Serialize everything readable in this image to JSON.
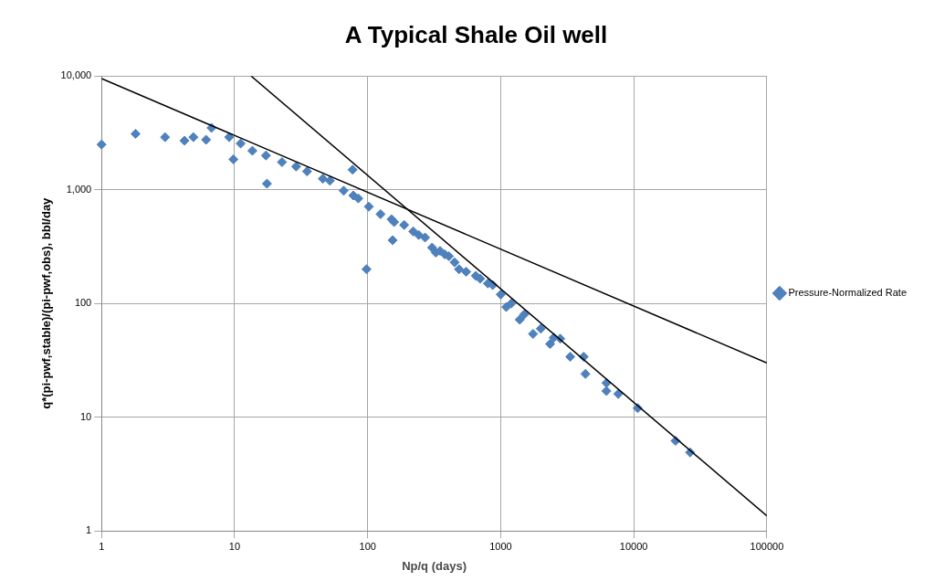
{
  "chart_data": {
    "type": "scatter",
    "title": "A Typical Shale Oil well",
    "xlabel": "Np/q (days)",
    "ylabel": "q*(pi-pwf,stable)/(pi-pwf,obs), bbl/day",
    "log": "xy",
    "grid": true,
    "legend": "right",
    "xlim": [
      1,
      100000
    ],
    "xticks": [
      1,
      10,
      100,
      1000,
      10000,
      100000
    ],
    "ylim": [
      1,
      10000
    ],
    "yticks": [
      1,
      10,
      100,
      {
        "value": 1000,
        "label": "1,000"
      },
      {
        "value": 10000,
        "label": "10,000"
      }
    ],
    "series": [
      {
        "name": "Pressure-Normalized Rate",
        "color": "#4f81bd",
        "marker": "diamond",
        "x": [
          1,
          1.8,
          3,
          4.2,
          4.9,
          6.1,
          6.7,
          9.1,
          9.8,
          11.1,
          13.6,
          17.2,
          17.5,
          22.7,
          29,
          35,
          46,
          52,
          66,
          77,
          78,
          85,
          98,
          102,
          125,
          151,
          154,
          158,
          188,
          220,
          242,
          270,
          305,
          325,
          350,
          380,
          408,
          450,
          486,
          550,
          650,
          700,
          800,
          870,
          1000,
          1100,
          1200,
          1390,
          1500,
          1750,
          2000,
          2350,
          2500,
          2800,
          3330,
          4200,
          4330,
          6230,
          6230,
          7640,
          10700,
          20600,
          26500
        ],
        "values": [
          2500,
          3100,
          2900,
          2700,
          2900,
          2750,
          3500,
          2900,
          1850,
          2550,
          2200,
          2000,
          1130,
          1750,
          1600,
          1450,
          1250,
          1200,
          980,
          1500,
          890,
          840,
          200,
          710,
          610,
          550,
          360,
          520,
          490,
          430,
          400,
          380,
          310,
          280,
          290,
          270,
          260,
          230,
          200,
          190,
          175,
          165,
          150,
          145,
          120,
          93,
          100,
          72,
          80,
          54,
          60,
          44,
          50,
          49,
          34,
          34,
          24,
          20,
          17,
          16,
          12,
          6.2,
          4.9
        ]
      },
      {
        "type": "line",
        "color": "#000000",
        "marker": "none",
        "x": [
          1,
          100000
        ],
        "values": [
          9500,
          30
        ]
      },
      {
        "type": "line",
        "color": "#000000",
        "marker": "none",
        "x": [
          13.3,
          100000
        ],
        "values": [
          10000,
          1.36
        ]
      }
    ]
  }
}
